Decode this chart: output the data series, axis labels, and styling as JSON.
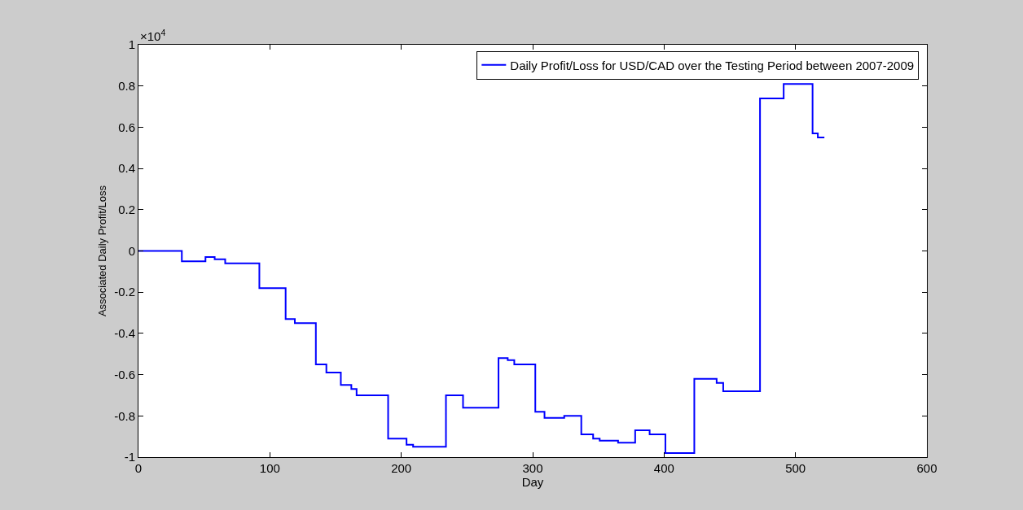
{
  "chart_data": {
    "type": "step",
    "xlabel": "Day",
    "ylabel": "Associated Daily Profit/Loss",
    "annotations": [
      "×10$^{4}$"
    ],
    "xlim": [
      0,
      600
    ],
    "xticks": [
      0,
      100,
      200,
      300,
      400,
      500,
      600
    ],
    "ylim": [
      -1,
      1
    ],
    "yticks": [
      -1,
      -0.8,
      -0.6,
      -0.4,
      -0.2,
      0,
      0.2,
      0.4,
      0.6,
      0.8,
      1
    ],
    "legend": "top right",
    "marker": "none",
    "line_style": "solid",
    "series": [
      {
        "name": "Daily Profit/Loss for USD/CAD over the Testing Period between 2007-2009",
        "color": "#0000ff",
        "x": [
          0,
          33,
          51,
          58,
          66,
          92,
          112,
          119,
          135,
          143,
          154,
          162,
          166,
          190,
          204,
          209,
          234,
          247,
          274,
          281,
          286,
          302,
          309,
          324,
          337,
          346,
          351,
          365,
          378,
          389,
          401,
          423,
          440,
          445,
          473,
          491,
          513,
          517,
          522
        ],
        "values": [
          0,
          -0.05,
          -0.03,
          -0.04,
          -0.06,
          -0.18,
          -0.33,
          -0.35,
          -0.55,
          -0.59,
          -0.65,
          -0.67,
          -0.7,
          -0.91,
          -0.94,
          -0.95,
          -0.7,
          -0.76,
          -0.52,
          -0.53,
          -0.55,
          -0.78,
          -0.81,
          -0.8,
          -0.89,
          -0.91,
          -0.92,
          -0.93,
          -0.87,
          -0.89,
          -0.98,
          -0.62,
          -0.64,
          -0.68,
          0.74,
          0.81,
          0.57,
          0.55,
          0.55
        ]
      }
    ]
  }
}
